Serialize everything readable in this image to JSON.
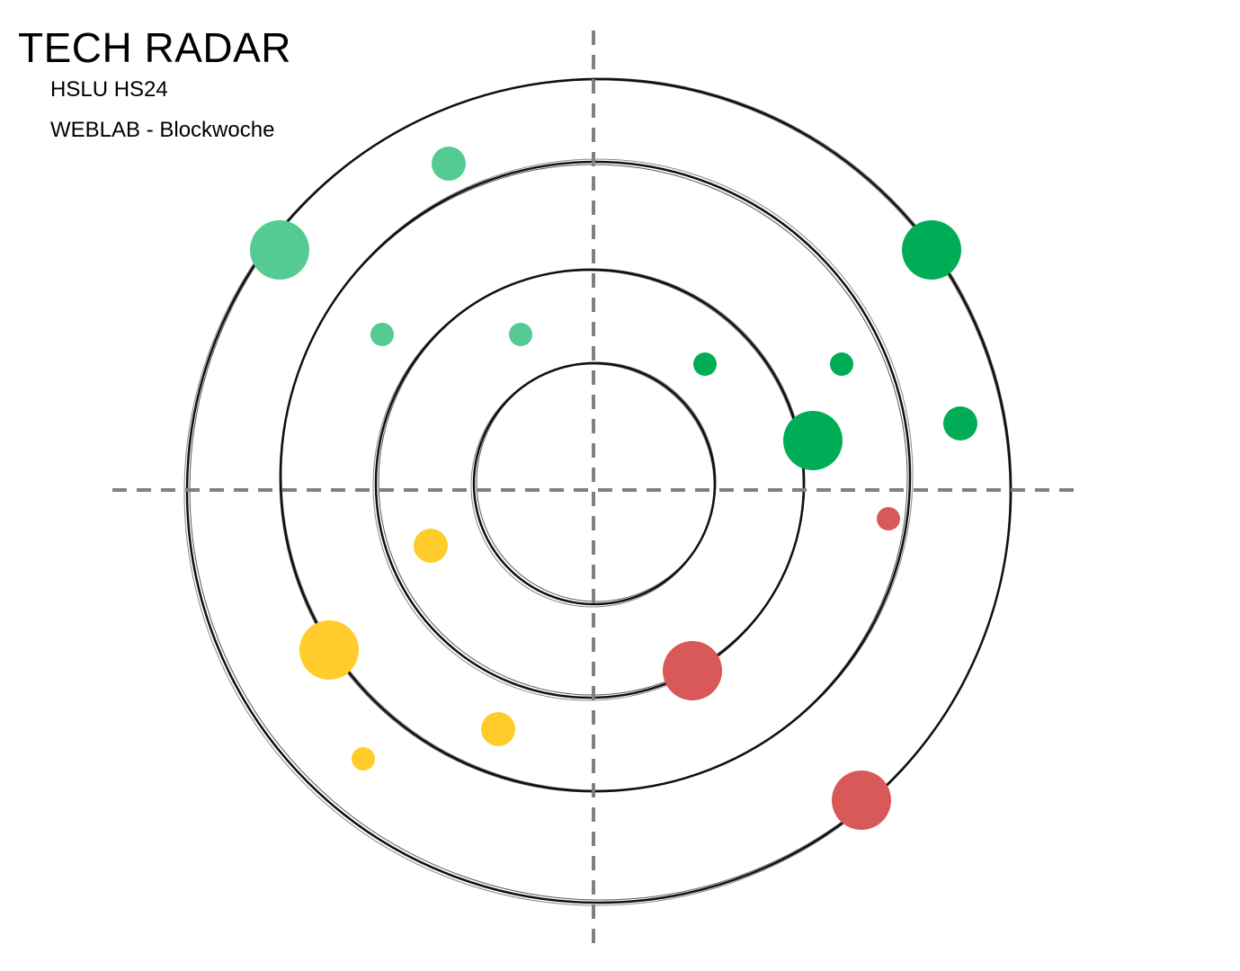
{
  "header": {
    "title": "TECH RADAR",
    "subtitle_1": "HSLU HS24",
    "subtitle_2": "WEBLAB - Blockwoche"
  },
  "colors": {
    "ring_stroke": "#111111",
    "axis_stroke": "#808080",
    "top_left": "#53cb92",
    "top_right": "#00ad56",
    "bottom_left": "#ffcc2b",
    "bottom_right": "#d95959"
  }
}
